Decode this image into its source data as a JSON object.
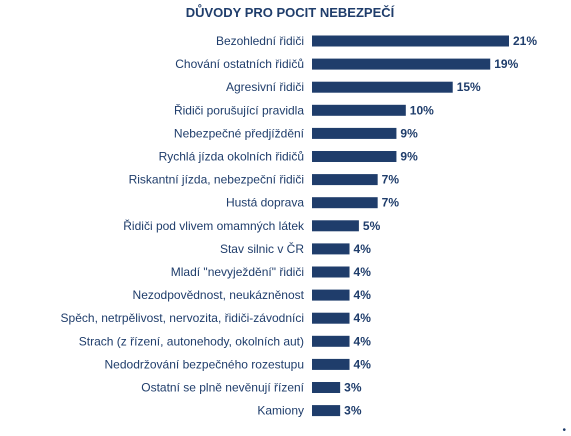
{
  "chart_data": {
    "type": "bar",
    "orientation": "horizontal",
    "title": "DŮVODY PRO POCIT NEBEZPEČÍ",
    "categories": [
      "Bezohlední řidiči",
      "Chování ostatních řidičů",
      "Agresivní řidiči",
      "Řidiči porušující pravidla",
      "Nebezpečné předjíždění",
      "Rychlá jízda okolních řidičů",
      "Riskantní jízda, nebezpeční řidiči",
      "Hustá doprava",
      "Řidiči pod vlivem omamných látek",
      "Stav silnic v ČR",
      "Mladí \"nevyježdění\" řidiči",
      "Nezodpovědnost, neukázněnost",
      "Spěch, netrpělivost, nervozita, řidiči-závodníci",
      "Strach (z řízení, autonehody, okolních aut)",
      "Nedodržování bezpečného rozestupu",
      "Ostatní se plně nevěnují řízení",
      "Kamiony"
    ],
    "values": [
      21,
      19,
      15,
      10,
      9,
      9,
      7,
      7,
      5,
      4,
      4,
      4,
      4,
      4,
      4,
      3,
      3
    ],
    "value_labels": [
      "21%",
      "19%",
      "15%",
      "10%",
      "9%",
      "9%",
      "7%",
      "7%",
      "5%",
      "4%",
      "4%",
      "4%",
      "4%",
      "4%",
      "4%",
      "3%",
      "3%"
    ],
    "xlim": [
      0,
      21
    ],
    "grid": false,
    "bar_color": "#1f3d6b",
    "text_color": "#1f3d6b"
  },
  "footer_mark": "•"
}
